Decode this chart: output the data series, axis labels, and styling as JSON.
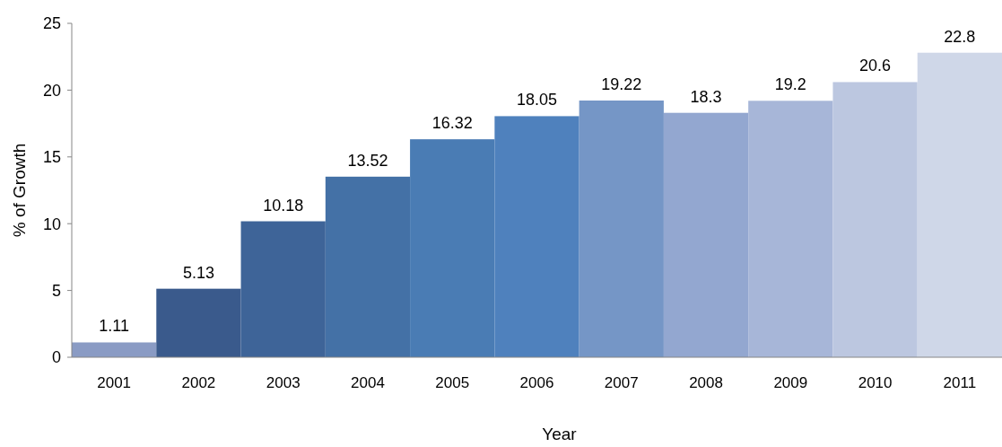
{
  "chart_data": {
    "type": "bar",
    "xlabel": "Year",
    "ylabel": "% of Growth",
    "categories": [
      "2001",
      "2002",
      "2003",
      "2004",
      "2005",
      "2006",
      "2007",
      "2008",
      "2009",
      "2010",
      "2011"
    ],
    "values": [
      1.11,
      5.13,
      10.18,
      13.52,
      16.32,
      18.05,
      19.22,
      18.3,
      19.2,
      20.6,
      22.8
    ],
    "colors": [
      "#8a9bc4",
      "#3a5a8c",
      "#3e6498",
      "#4471a6",
      "#4a7cb4",
      "#4f81bd",
      "#7596c6",
      "#93a7d0",
      "#a7b6d8",
      "#bcc7e0",
      "#cfd7e8"
    ],
    "ylim": [
      0,
      25
    ],
    "yticks": [
      0,
      5,
      10,
      15,
      20,
      25
    ],
    "data_labels": true
  }
}
